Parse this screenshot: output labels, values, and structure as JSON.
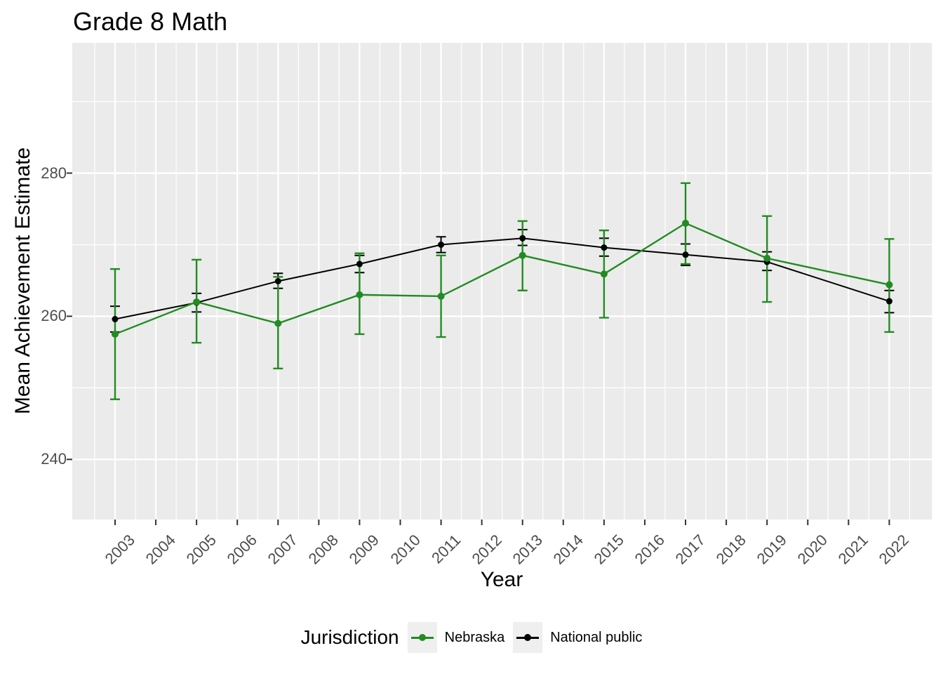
{
  "title": "Grade 8 Math",
  "axes": {
    "x_label": "Year",
    "y_label": "Mean Achievement Estimate"
  },
  "legend": {
    "title": "Jurisdiction",
    "entries": [
      {
        "label": "Nebraska",
        "color": "#228B22"
      },
      {
        "label": "National public",
        "color": "#000000"
      }
    ]
  },
  "colors": {
    "panel_background": "#EBEBEB",
    "gridline": "#FFFFFF",
    "axis_text": "#4D4D4D",
    "tick_mark": "#333333",
    "legend_key_background": "#EFEFEF",
    "nebraska_green": "#228B22",
    "national_black": "#000000"
  },
  "chart_data": {
    "type": "line",
    "title": "Grade 8 Math",
    "xlabel": "Year",
    "ylabel": "Mean Achievement Estimate",
    "grid": true,
    "legend_position": "bottom",
    "error_bars": true,
    "x_axis_ticks": [
      2003,
      2004,
      2005,
      2006,
      2007,
      2008,
      2009,
      2010,
      2011,
      2012,
      2013,
      2014,
      2015,
      2016,
      2017,
      2018,
      2019,
      2020,
      2021,
      2022
    ],
    "y_axis_ticks": [
      240,
      260,
      280
    ],
    "xlim": [
      2001.95,
      2023.05
    ],
    "ylim": [
      231.6,
      298.2
    ],
    "x": [
      2003,
      2005,
      2007,
      2009,
      2011,
      2013,
      2015,
      2017,
      2019,
      2022
    ],
    "series": [
      {
        "name": "Nebraska",
        "color": "#228B22",
        "values": [
          257.5,
          262.0,
          259.0,
          263.0,
          262.8,
          268.5,
          265.9,
          273.0,
          268.1,
          264.4
        ],
        "ci_lower": [
          248.4,
          256.3,
          252.7,
          257.5,
          257.1,
          263.6,
          259.8,
          267.3,
          262.0,
          257.8
        ],
        "ci_upper": [
          266.6,
          267.9,
          265.5,
          268.8,
          268.5,
          273.3,
          272.0,
          278.6,
          274.0,
          270.8
        ]
      },
      {
        "name": "National public",
        "color": "#000000",
        "values": [
          259.6,
          261.9,
          264.9,
          267.3,
          270.0,
          270.9,
          269.6,
          268.6,
          267.6,
          262.1
        ],
        "ci_lower": [
          257.8,
          260.6,
          263.9,
          266.1,
          268.9,
          269.9,
          268.4,
          267.1,
          266.4,
          260.5
        ],
        "ci_upper": [
          261.4,
          263.2,
          266.0,
          268.5,
          271.1,
          272.1,
          270.9,
          270.1,
          269.0,
          263.6
        ]
      }
    ]
  }
}
